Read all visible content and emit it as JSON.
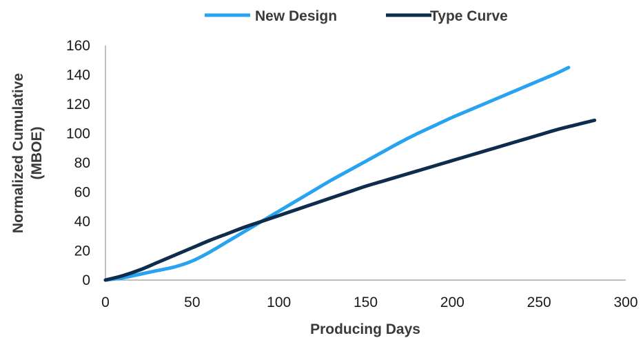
{
  "chart_data": {
    "type": "line",
    "title": "",
    "xlabel": "Producing Days",
    "ylabel_line1": "Normalized Cumulative",
    "ylabel_line2": "(MBOE)",
    "xlim": [
      0,
      300
    ],
    "ylim": [
      0,
      160
    ],
    "x_ticks": [
      0,
      50,
      100,
      150,
      200,
      250,
      300
    ],
    "y_ticks": [
      0,
      20,
      40,
      60,
      80,
      100,
      120,
      140,
      160
    ],
    "grid": false,
    "legend_position": "top",
    "series": [
      {
        "name": "New Design",
        "color": "#29a3f0",
        "x": [
          0,
          10,
          20,
          30,
          40,
          50,
          60,
          70,
          80,
          90,
          100,
          110,
          120,
          130,
          140,
          150,
          160,
          170,
          180,
          190,
          200,
          210,
          220,
          230,
          240,
          250,
          260,
          267
        ],
        "y": [
          0,
          1.5,
          4,
          6.5,
          9,
          13,
          19,
          26,
          33,
          40,
          47,
          54,
          61,
          68,
          74.5,
          81,
          87.5,
          94,
          100,
          105.5,
          111,
          116,
          121,
          126,
          131,
          136,
          141,
          145
        ]
      },
      {
        "name": "Type Curve",
        "color": "#0d2c4e",
        "x": [
          0,
          10,
          20,
          30,
          40,
          50,
          60,
          70,
          80,
          90,
          100,
          110,
          120,
          130,
          140,
          150,
          160,
          170,
          180,
          190,
          200,
          210,
          220,
          230,
          240,
          250,
          260,
          270,
          282
        ],
        "y": [
          0,
          3,
          7,
          12,
          17,
          22,
          27,
          31.5,
          36,
          40,
          44,
          48,
          52,
          56,
          60,
          64,
          67.5,
          71,
          74.5,
          78,
          81.5,
          85,
          88.5,
          92,
          95.5,
          99,
          102.5,
          105.5,
          109
        ]
      }
    ]
  }
}
